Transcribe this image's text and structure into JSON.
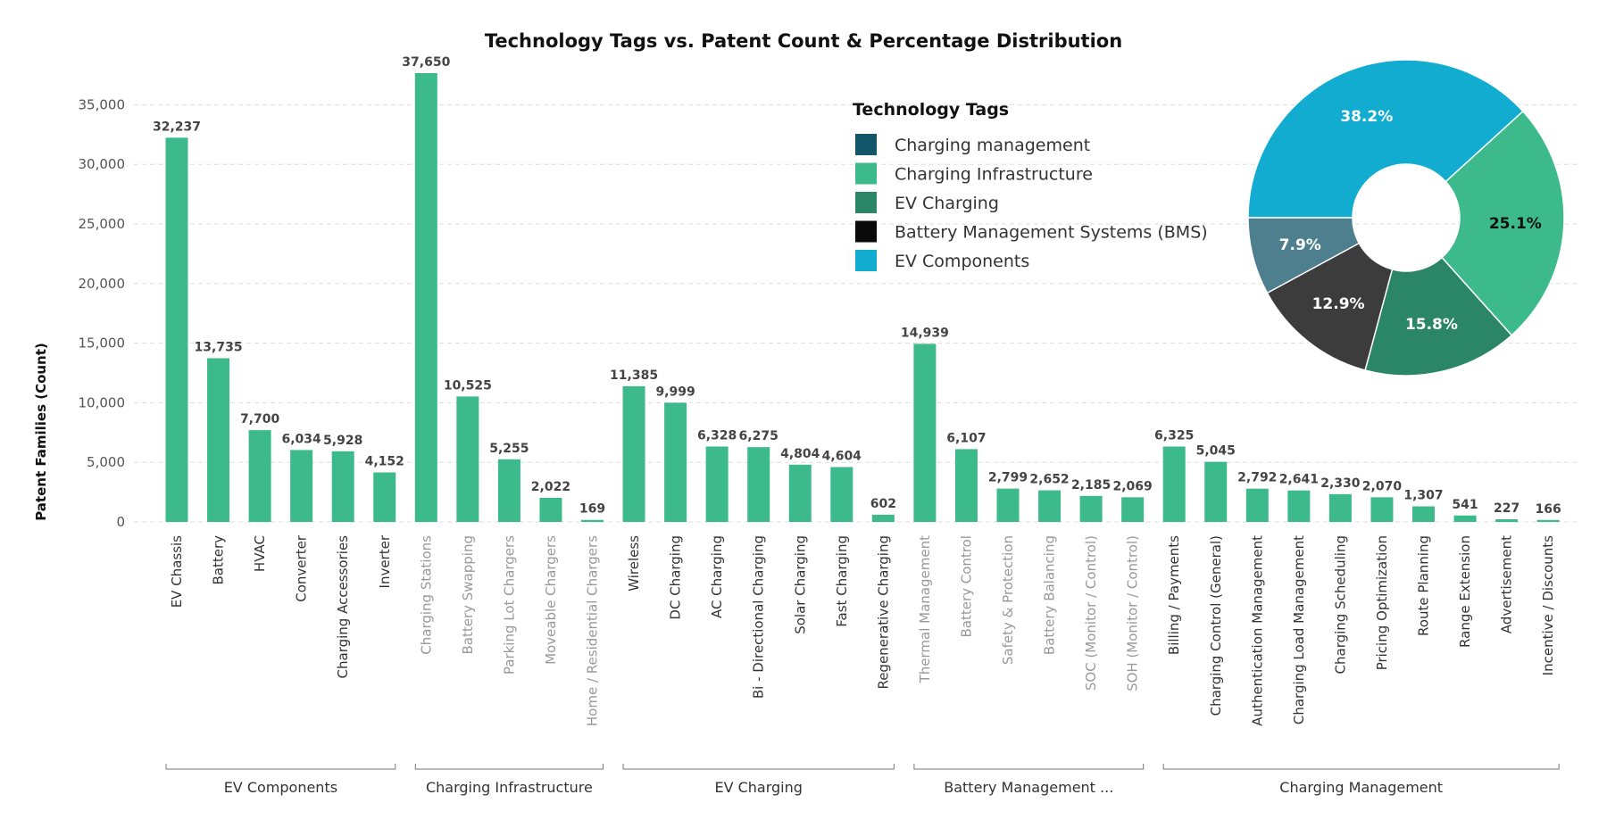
{
  "chart_data": [
    {
      "type": "bar",
      "title": "Technology Tags vs. Patent Count & Percentage Distribution",
      "ylabel": "Patent Families (Count)",
      "ylim": [
        0,
        37650
      ],
      "yticks": [
        0,
        5000,
        10000,
        15000,
        20000,
        25000,
        30000,
        35000
      ],
      "ytick_labels": [
        "0",
        "5,000",
        "10,000",
        "15,000",
        "20,000",
        "25,000",
        "30,000",
        "35,000"
      ],
      "grid": true,
      "bar_color": "#3dba8b",
      "groups": [
        {
          "name": "EV Components",
          "tick_color": "#333333",
          "categories": [
            "EV Chassis",
            "Battery",
            "HVAC",
            "Converter",
            "Charging Accessories",
            "Inverter"
          ],
          "values": [
            32237,
            13735,
            7700,
            6034,
            5928,
            4152
          ],
          "labels": [
            "32,237",
            "13,735",
            "7,700",
            "6,034",
            "5,928",
            "4,152"
          ]
        },
        {
          "name": "Charging Infrastructure",
          "tick_color": "#999999",
          "categories": [
            "Charging Stations",
            "Battery Swapping",
            "Parking Lot Chargers",
            "Moveable Chargers",
            "Home / Residential Chargers"
          ],
          "values": [
            37650,
            10525,
            5255,
            2022,
            169
          ],
          "labels": [
            "37,650",
            "10,525",
            "5,255",
            "2,022",
            "169"
          ]
        },
        {
          "name": "EV Charging",
          "tick_color": "#333333",
          "categories": [
            "Wireless",
            "DC Charging",
            "AC Charging",
            "Bi - Directional Charging",
            "Solar Charging",
            "Fast Charging",
            "Regenerative Charging"
          ],
          "values": [
            11385,
            9999,
            6328,
            6275,
            4804,
            4604,
            602
          ],
          "labels": [
            "11,385",
            "9,999",
            "6,328",
            "6,275",
            "4,804",
            "4,604",
            "602"
          ]
        },
        {
          "name": "Battery Management ...",
          "tick_color": "#999999",
          "categories": [
            "Thermal Management",
            "Battery Control",
            "Safety & Protection",
            "Battery Balancing",
            "SOC (Monitor / Control)",
            "SOH (Monitor / Control)"
          ],
          "values": [
            14939,
            6107,
            2799,
            2652,
            2185,
            2069
          ],
          "labels": [
            "14,939",
            "6,107",
            "2,799",
            "2,652",
            "2,185",
            "2,069"
          ]
        },
        {
          "name": "Charging Management",
          "tick_color": "#333333",
          "categories": [
            "Billing / Payments",
            "Charging Control (General)",
            "Authentication Management",
            "Charging Load Management",
            "Charging Scheduling",
            "Pricing Optimization",
            "Route Planning",
            "Range Extension",
            "Advertisement",
            "Incentive / Discounts"
          ],
          "values": [
            6325,
            5045,
            2792,
            2641,
            2330,
            2070,
            1307,
            541,
            227,
            166
          ],
          "labels": [
            "6,325",
            "5,045",
            "2,792",
            "2,641",
            "2,330",
            "2,070",
            "1,307",
            "541",
            "227",
            "166"
          ]
        }
      ]
    },
    {
      "type": "pie",
      "donut": true,
      "legend_title": "Technology Tags",
      "legend_placement": "left-of-pie",
      "legend": [
        {
          "name": "Charging management",
          "color": "#13566a"
        },
        {
          "name": "Charging Infrastructure",
          "color": "#3dba8b"
        },
        {
          "name": "EV Charging",
          "color": "#2b8667"
        },
        {
          "name": "Battery Management Systems (BMS)",
          "color": "#0a0a0a"
        },
        {
          "name": "EV Components",
          "color": "#12acd0"
        }
      ],
      "slices": [
        {
          "value": 38.2,
          "label": "38.2%",
          "color": "#12acd0",
          "label_color": "#ffffff"
        },
        {
          "value": 25.1,
          "label": "25.1%",
          "color": "#3dba8b",
          "label_color": "#111111"
        },
        {
          "value": 15.8,
          "label": "15.8%",
          "color": "#2b8667",
          "label_color": "#ffffff"
        },
        {
          "value": 12.9,
          "label": "12.9%",
          "color": "#3c3c3c",
          "label_color": "#ffffff"
        },
        {
          "value": 7.9,
          "label": "7.9%",
          "color": "#4d7f8e",
          "label_color": "#ffffff"
        }
      ]
    }
  ]
}
